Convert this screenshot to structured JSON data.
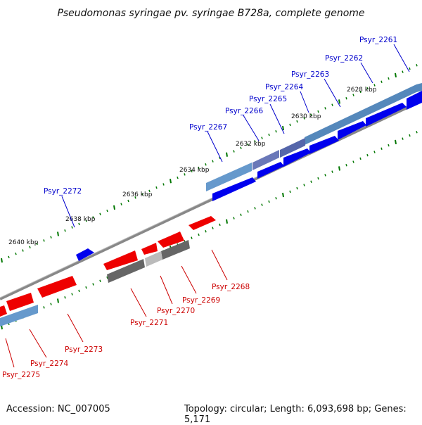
{
  "title": "Pseudomonas syringae pv. syringae B728a, complete genome",
  "footer": {
    "accession": "Accession: NC_007005",
    "topology": "Topology: circular; Length: 6,093,698 bp; Genes: 5,171"
  },
  "colors": {
    "forward_gene": "#0000ee",
    "reverse_gene": "#ee0000",
    "forward_label": "#0000cc",
    "reverse_label": "#cc0000",
    "backbone": "#888888",
    "tick": "#007700",
    "cds_bar": "#5588bb",
    "pseudo_bar": "#666666"
  },
  "scale_ticks": [
    "2628 kbp",
    "2630 kbp",
    "2632 kbp",
    "2634 kbp",
    "2636 kbp",
    "2638 kbp",
    "2640 kbp"
  ],
  "forward_genes": [
    "Psyr_2261",
    "Psyr_2262",
    "Psyr_2263",
    "Psyr_2264",
    "Psyr_2265",
    "Psyr_2266",
    "Psyr_2267",
    "Psyr_2272"
  ],
  "reverse_genes": [
    "Psyr_2268",
    "Psyr_2269",
    "Psyr_2270",
    "Psyr_2271",
    "Psyr_2273",
    "Psyr_2274",
    "Psyr_2275"
  ]
}
